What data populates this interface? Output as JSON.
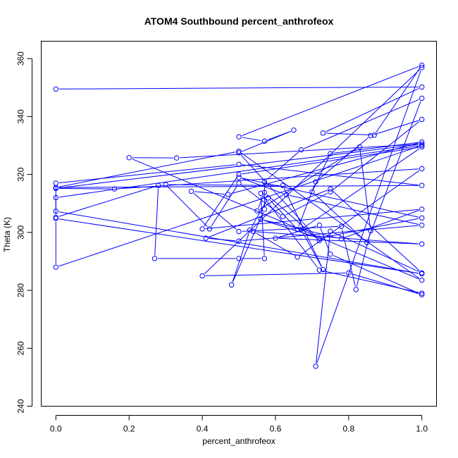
{
  "chart_data": {
    "type": "line",
    "title": "ATOM4 Southbound percent_anthrofeox",
    "xlabel": "percent_anthrofeox",
    "ylabel": "Theta (K)",
    "xlim": [
      -0.04,
      1.04
    ],
    "ylim": [
      240,
      366
    ],
    "xticks": [
      "0.0",
      "0.2",
      "0.4",
      "0.6",
      "0.8",
      "1.0"
    ],
    "xtick_values": [
      0,
      0.2,
      0.4,
      0.6,
      0.8,
      1.0
    ],
    "yticks": [
      "240",
      "260",
      "280",
      "300",
      "320",
      "340",
      "360"
    ],
    "ytick_values": [
      240,
      260,
      280,
      300,
      320,
      340,
      360
    ],
    "grid": false,
    "line_color": "#0000ff",
    "marker": "open-circle",
    "series": [
      {
        "x": [
          0.0,
          1.0,
          0.73,
          0.87,
          1.0,
          0.5,
          0.57,
          0.65,
          0.5,
          0.72,
          0.57,
          0.55,
          0.83,
          0.86,
          0.82,
          0.78,
          0.5,
          0.37,
          0.47,
          1.0,
          0.75,
          0.7,
          0.85,
          1.0,
          0.67,
          0.57,
          0.57,
          0.48,
          0.53,
          0.58,
          0.66,
          0.71,
          0.86,
          1.0,
          0.75,
          0.62,
          0.5,
          0.42,
          0.3,
          0.62,
          0.73,
          0.67,
          1.0,
          0.5,
          0.4,
          1.0,
          0.78,
          0.56,
          0.72,
          1.0,
          0.5,
          0.63,
          1.0,
          0.5,
          0.41,
          0.75,
          1.0,
          0.75,
          0.71,
          1.0,
          0.4,
          0.8,
          1.0,
          0.75,
          0.72,
          0.6,
          1.0,
          0.54,
          0.66,
          1.0,
          0.16,
          0.0,
          1.0,
          0.33,
          0.2,
          1.0,
          0.5,
          0.0,
          1.0,
          0.5,
          0.0,
          0.0,
          1.0,
          0.0,
          0.0,
          1.0,
          0.0,
          0.0,
          0.28,
          0.27,
          0.5,
          0.57,
          0.56,
          0.72,
          1.0
        ],
        "y": [
          349.5,
          350.2,
          334.3,
          333.6,
          357.7,
          333.0,
          331.5,
          335.3,
          327.5,
          297.2,
          313.8,
          307.4,
          329.5,
          300.6,
          280.3,
          302.1,
          300.3,
          314.2,
          313.1,
          331.2,
          327.2,
          314.0,
          296.5,
          346.3,
          328.5,
          317.5,
          308.0,
          281.9,
          300.8,
          311.9,
          301.0,
          317.5,
          333.4,
          339.0,
          314.0,
          305.5,
          317.0,
          301.2,
          316.5,
          316.2,
          287.2,
          301.0,
          329.5,
          320.0,
          301.2,
          308.0,
          297.8,
          304.5,
          298.0,
          305.0,
          319.0,
          313.0,
          302.5,
          297.0,
          298.0,
          315.0,
          286.0,
          300.4,
          253.8,
          356.9,
          285.0,
          286.0,
          278.5,
          292.5,
          302.5,
          298.0,
          296.0,
          300.3,
          291.5,
          322.0,
          315.0,
          315.2,
          330.5,
          325.7,
          325.8,
          283.5,
          328.0,
          315.5,
          316.2,
          323.5,
          317.0,
          307.3,
          285.7,
          304.8,
          288.0,
          330.0,
          312.0,
          305.2,
          316.2,
          291.0,
          291.0,
          291.0,
          313.5,
          287.0,
          279.0
        ]
      }
    ]
  }
}
